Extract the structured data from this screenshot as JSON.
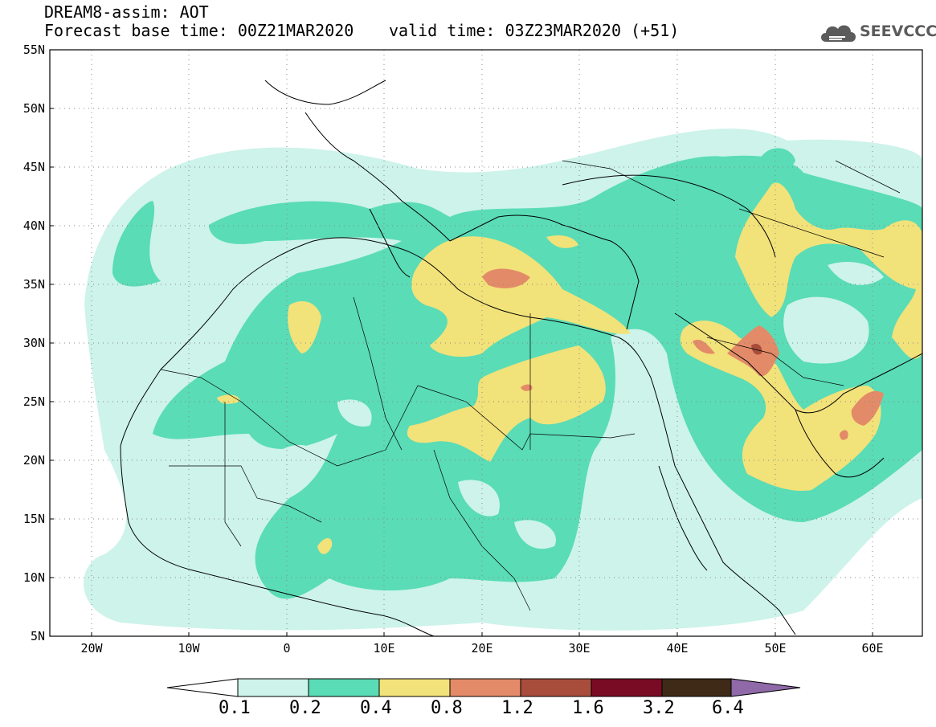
{
  "header": {
    "title": "DREAM8-assim: AOT",
    "base_time": "Forecast base time: 00Z21MAR2020",
    "valid_time": "valid time: 03Z23MAR2020 (+51)"
  },
  "logo": {
    "text": "SEEVCCC",
    "icon": "cloud-logo-icon"
  },
  "map": {
    "lat_labels": [
      "55N",
      "50N",
      "45N",
      "40N",
      "35N",
      "30N",
      "25N",
      "20N",
      "15N",
      "10N",
      "5N"
    ],
    "lon_labels": [
      "20W",
      "10W",
      "0",
      "10E",
      "20E",
      "30E",
      "40E",
      "50E",
      "60E"
    ],
    "lat_range": [
      5,
      55
    ],
    "lon_range": [
      -25,
      65
    ],
    "grid": "dotted"
  },
  "legend": {
    "levels": [
      "0.1",
      "0.2",
      "0.4",
      "0.8",
      "1.2",
      "1.6",
      "3.2",
      "6.4"
    ],
    "colors": [
      "#ffffff",
      "#cdf3ea",
      "#5adcb6",
      "#f2e27a",
      "#e38b68",
      "#a84d3c",
      "#7a0b24",
      "#3e2a17",
      "#8f69a8"
    ]
  }
}
